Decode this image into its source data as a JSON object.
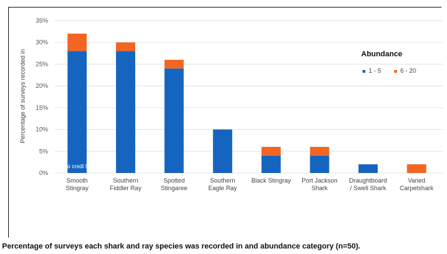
{
  "chart_data": {
    "type": "bar",
    "stacked": true,
    "categories": [
      [
        "Smooth",
        "Stingray"
      ],
      [
        "Southern",
        "Fiddler Ray"
      ],
      [
        "Spotted",
        "Stingaree"
      ],
      [
        "Southern",
        "Eagle Ray"
      ],
      [
        "Black Stingray"
      ],
      [
        "Port Jackson",
        "Shark"
      ],
      [
        "Draughtboard",
        "/ Swell Shark"
      ],
      [
        "Varied",
        "Carpetshark"
      ]
    ],
    "series": [
      {
        "name": "1 - 5",
        "color": "#1565c0",
        "values": [
          28,
          28,
          24,
          10,
          4,
          4,
          2,
          0
        ]
      },
      {
        "name": "6 - 20",
        "color": "#f26522",
        "values": [
          4,
          2,
          2,
          0,
          2,
          2,
          0,
          2
        ]
      }
    ],
    "ylabel": "Percentage of surveys recorded in",
    "ylim": [
      0,
      35
    ],
    "yticks": [
      "0%",
      "5%",
      "10%",
      "15%",
      "20%",
      "25%",
      "30%",
      "35%"
    ],
    "ytick_values": [
      0,
      5,
      10,
      15,
      20,
      25,
      30,
      35
    ],
    "legend_title": "Abundance",
    "legend_position": "right",
    "grid": true
  },
  "caption": "Percentage of surveys each shark and ray species was recorded in and abundance category (n=50).",
  "watermark_text": "o credi          lls"
}
